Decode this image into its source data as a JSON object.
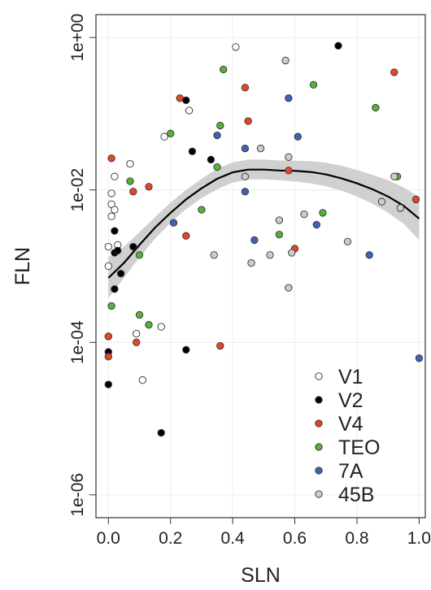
{
  "chart_data": {
    "type": "scatter",
    "xlabel": "SLN",
    "ylabel": "FLN",
    "xlim": [
      -0.04,
      1.02
    ],
    "ylim_log10": [
      -6.3,
      0.3
    ],
    "y_scale": "log",
    "x_ticks": [
      0.0,
      0.2,
      0.4,
      0.6,
      0.8,
      1.0
    ],
    "x_tick_labels": [
      "0.0",
      "0.2",
      "0.4",
      "0.6",
      "0.8",
      "1.0"
    ],
    "y_ticks_log10": [
      0,
      -2,
      -4,
      -6
    ],
    "y_tick_labels": [
      "1e+00",
      "1e-02",
      "1e-04",
      "1e-06"
    ],
    "grid": true,
    "legend_position": "bottom-right",
    "colors": {
      "V1": "#ffffff",
      "V2": "#000000",
      "V4": "#e8442a",
      "TEO": "#5ab03c",
      "7A": "#3d64b4",
      "45B": "#cccccc",
      "smooth_line": "#000000",
      "confidence_band": "#d0d0d0",
      "grid": "#ececec",
      "frame": "#333333"
    },
    "series": [
      {
        "name": "V1",
        "x": [
          0.0,
          0.0,
          0.01,
          0.01,
          0.01,
          0.02,
          0.02,
          0.03,
          0.07,
          0.09,
          0.11,
          0.17,
          0.18,
          0.26,
          0.41
        ],
        "y": [
          0.0018,
          0.001,
          0.0045,
          0.0065,
          0.009,
          0.015,
          0.0055,
          0.0019,
          0.022,
          0.00013,
          3.2e-05,
          0.00016,
          0.05,
          0.11,
          0.75
        ]
      },
      {
        "name": "V2",
        "x": [
          0.0,
          0.0,
          0.0,
          0.02,
          0.02,
          0.02,
          0.03,
          0.04,
          0.08,
          0.17,
          0.25,
          0.25,
          0.27,
          0.33,
          0.74
        ],
        "y": [
          7.5e-05,
          0.00012,
          2.8e-05,
          0.0015,
          0.0005,
          0.0029,
          0.0016,
          0.0008,
          0.0018,
          6.5e-06,
          0.15,
          8e-05,
          0.032,
          0.025,
          0.78
        ]
      },
      {
        "name": "V4",
        "x": [
          0.0,
          0.0,
          0.01,
          0.08,
          0.09,
          0.13,
          0.23,
          0.25,
          0.36,
          0.44,
          0.45,
          0.58,
          0.6,
          0.92,
          0.99
        ],
        "y": [
          0.00012,
          6.5e-05,
          0.026,
          0.0095,
          0.0001,
          0.011,
          0.16,
          0.0025,
          9e-05,
          0.22,
          0.08,
          0.018,
          0.0017,
          0.35,
          0.0075
        ]
      },
      {
        "name": "TEO",
        "x": [
          0.01,
          0.07,
          0.1,
          0.1,
          0.13,
          0.2,
          0.3,
          0.35,
          0.36,
          0.37,
          0.55,
          0.66,
          0.69,
          0.86,
          0.93
        ],
        "y": [
          0.0003,
          0.013,
          0.00023,
          0.0014,
          0.00017,
          0.055,
          0.0055,
          0.02,
          0.07,
          0.38,
          0.0026,
          0.24,
          0.005,
          0.12,
          0.015
        ]
      },
      {
        "name": "7A",
        "x": [
          0.21,
          0.35,
          0.44,
          0.44,
          0.47,
          0.58,
          0.61,
          0.67,
          0.84,
          1.0
        ],
        "y": [
          0.0037,
          0.052,
          0.035,
          0.0095,
          0.0022,
          0.16,
          0.05,
          0.0035,
          0.0014,
          6.2e-05
        ]
      },
      {
        "name": "45B",
        "x": [
          0.34,
          0.44,
          0.46,
          0.49,
          0.52,
          0.55,
          0.57,
          0.58,
          0.58,
          0.59,
          0.63,
          0.77,
          0.88,
          0.92,
          0.94
        ],
        "y": [
          0.0014,
          0.015,
          0.0011,
          0.035,
          0.0014,
          0.004,
          0.5,
          0.027,
          0.00052,
          0.0015,
          0.0048,
          0.0021,
          0.007,
          0.015,
          0.0058
        ]
      }
    ],
    "smooth_fit": {
      "x": [
        0.0,
        0.05,
        0.1,
        0.15,
        0.2,
        0.25,
        0.3,
        0.35,
        0.4,
        0.45,
        0.5,
        0.55,
        0.6,
        0.65,
        0.7,
        0.75,
        0.8,
        0.85,
        0.9,
        0.95,
        1.0
      ],
      "y": [
        0.0007,
        0.0011,
        0.0019,
        0.0032,
        0.005,
        0.0075,
        0.0105,
        0.014,
        0.017,
        0.0185,
        0.0185,
        0.018,
        0.0178,
        0.0172,
        0.016,
        0.0142,
        0.0122,
        0.0102,
        0.0082,
        0.0062,
        0.0042
      ],
      "y_low": [
        0.00038,
        0.0007,
        0.0013,
        0.0023,
        0.0037,
        0.0056,
        0.0078,
        0.0102,
        0.0125,
        0.0137,
        0.0138,
        0.0134,
        0.0129,
        0.0122,
        0.0112,
        0.0098,
        0.0082,
        0.0066,
        0.005,
        0.0036,
        0.0022
      ],
      "y_high": [
        0.0013,
        0.0018,
        0.0028,
        0.0044,
        0.0068,
        0.01,
        0.014,
        0.019,
        0.023,
        0.025,
        0.025,
        0.0243,
        0.0242,
        0.0238,
        0.0228,
        0.0208,
        0.0183,
        0.0158,
        0.0134,
        0.0108,
        0.0081
      ]
    }
  }
}
